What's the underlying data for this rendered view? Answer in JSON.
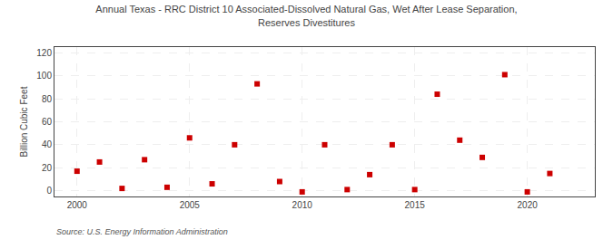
{
  "chart_data": {
    "type": "scatter",
    "title": "Annual Texas - RRC District 10 Associated-Dissolved Natural Gas, Wet After Lease Separation,\nReserves Divestitures",
    "ylabel": "Billion Cubic Feet",
    "annotations": [
      "Source: U.S. Energy Information Administration"
    ],
    "x": [
      2000,
      2001,
      2002,
      2003,
      2004,
      2005,
      2006,
      2007,
      2008,
      2009,
      2010,
      2011,
      2012,
      2013,
      2014,
      2015,
      2016,
      2017,
      2018,
      2019,
      2020,
      2021
    ],
    "values": [
      17,
      25,
      2,
      27,
      3,
      46,
      6,
      40,
      93,
      8,
      -1,
      40,
      1,
      14,
      40,
      1,
      84,
      44,
      29,
      101,
      -1,
      15
    ],
    "color": "#cc0000",
    "marker": "square",
    "xlim": [
      1999,
      2023
    ],
    "xticks": [
      2000,
      2005,
      2010,
      2015,
      2020
    ],
    "ylim": [
      -5,
      125
    ],
    "yticks": [
      0,
      20,
      40,
      60,
      80,
      100,
      120
    ],
    "grid": true
  }
}
